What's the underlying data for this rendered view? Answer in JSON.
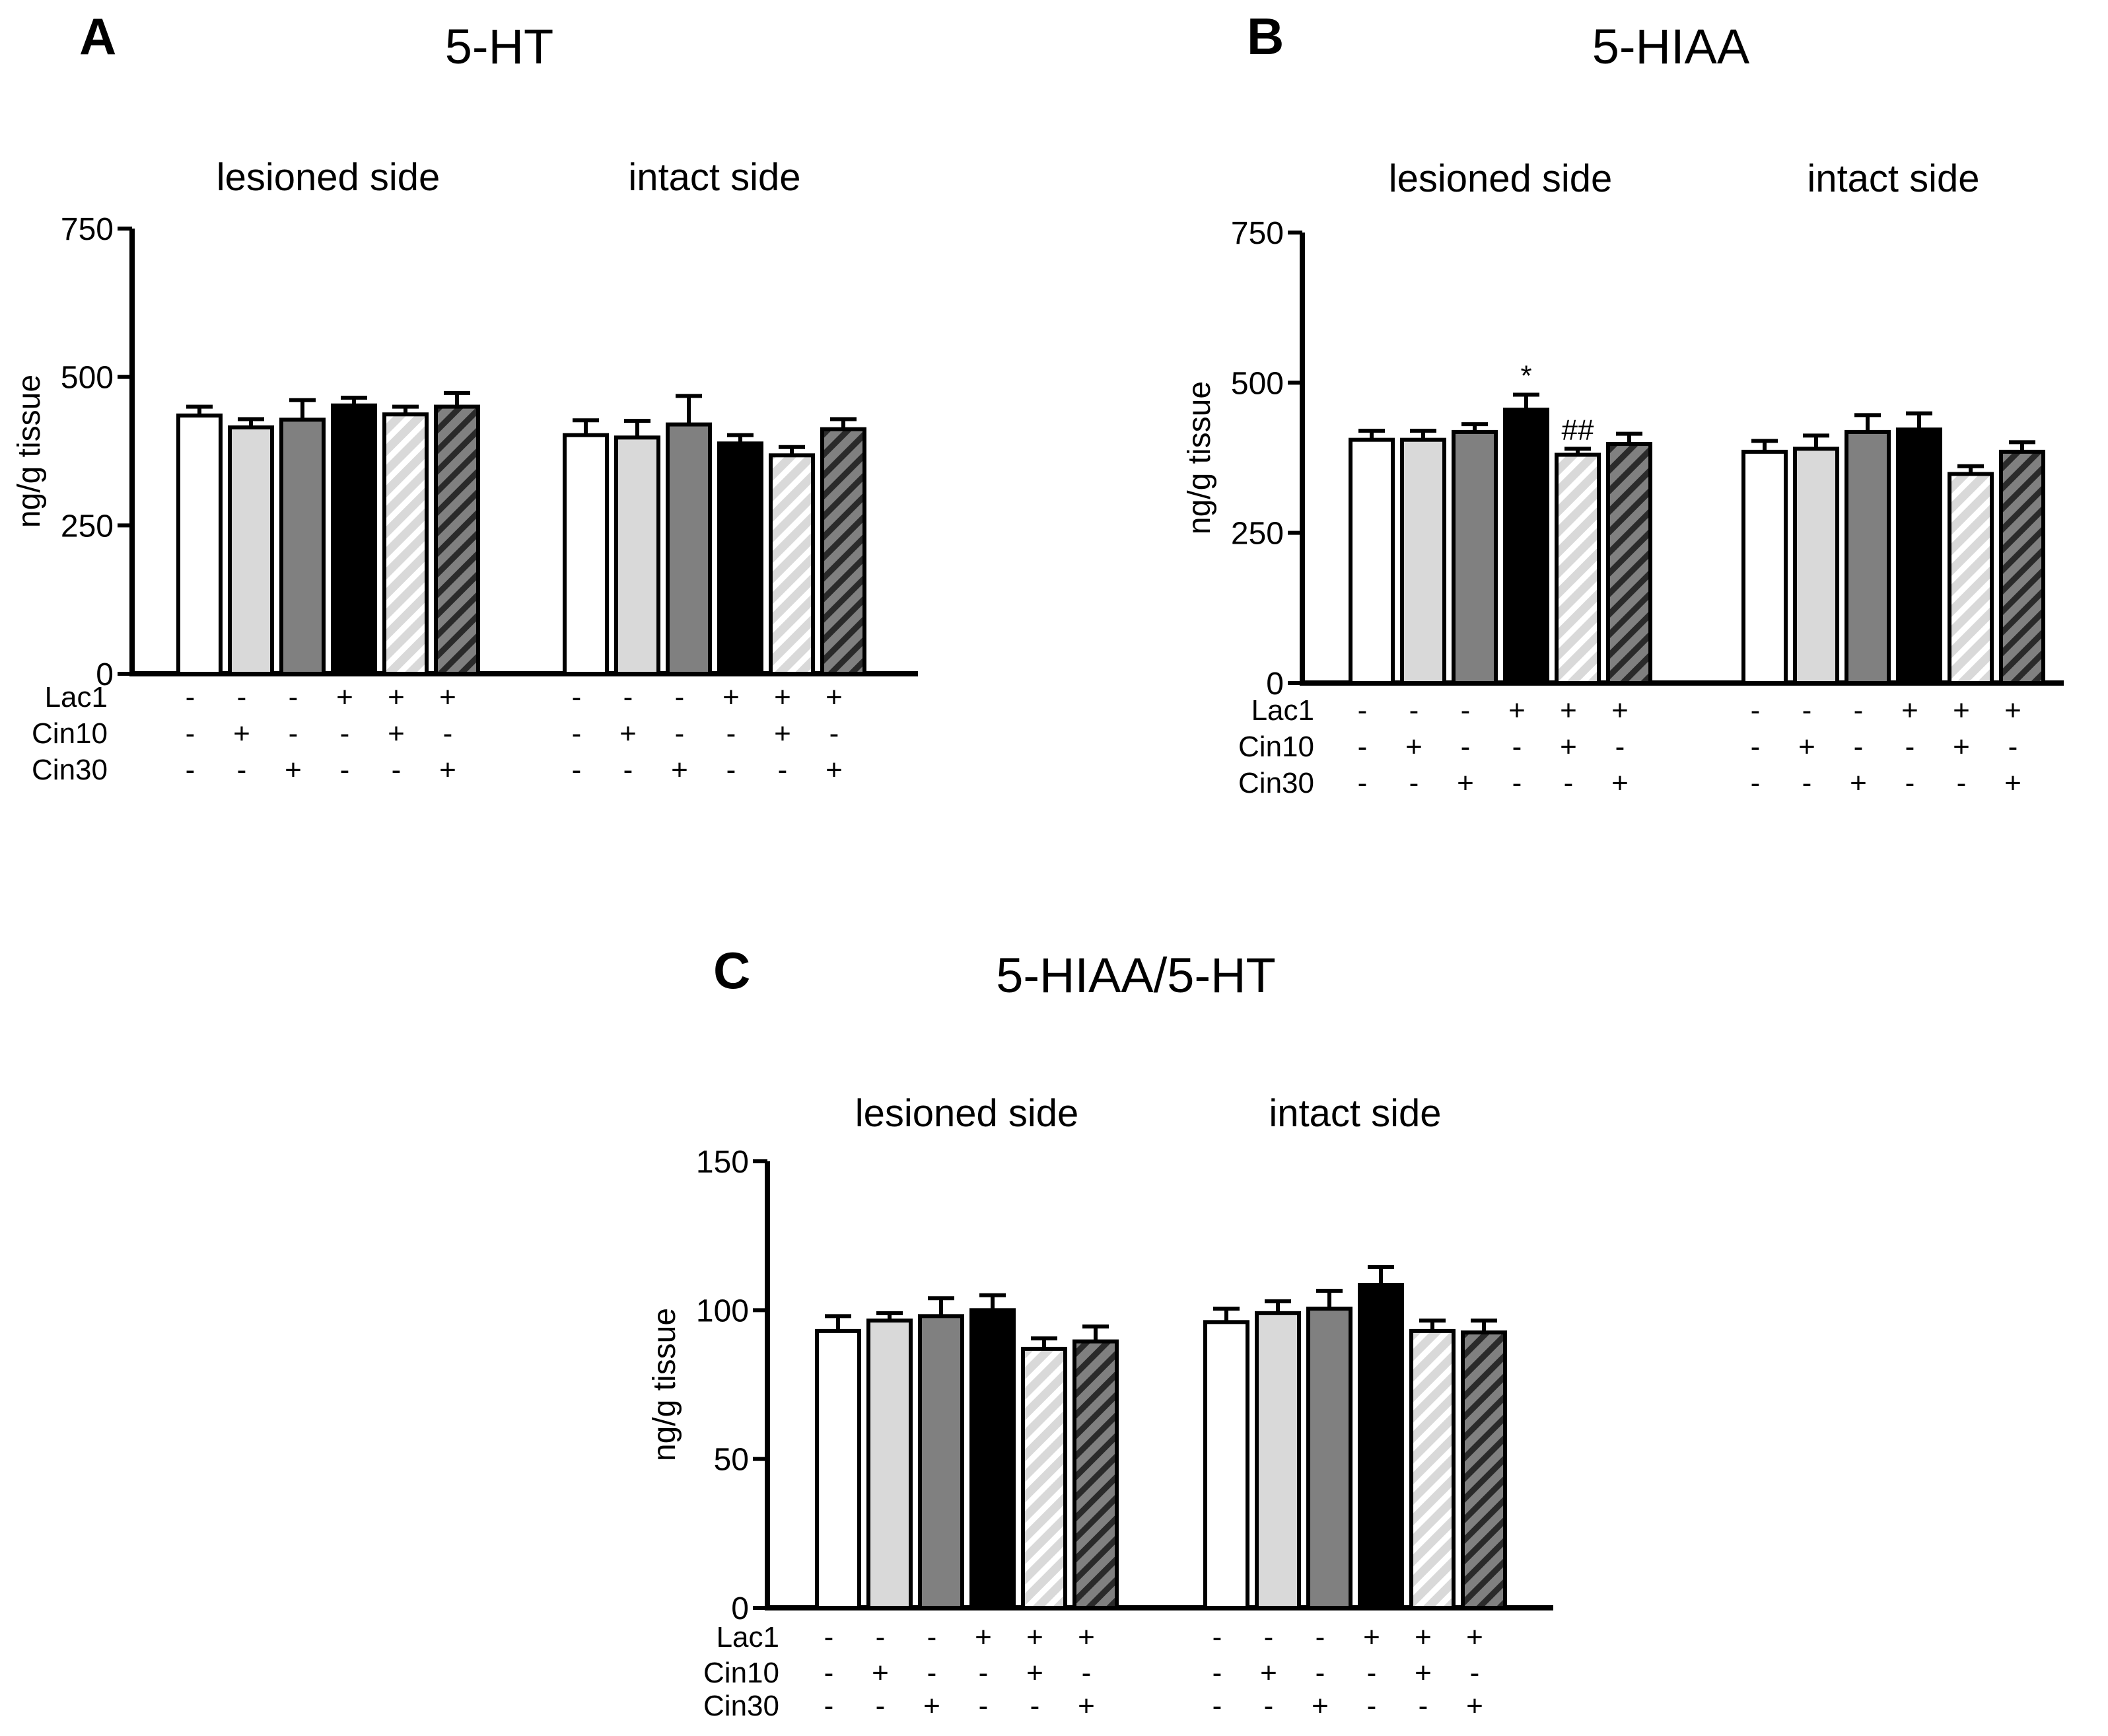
{
  "patterns": {
    "white": "#ffffff",
    "light_gray": "#d9d9d9",
    "dark_gray": "#808080",
    "black": "#000000",
    "hatch_light": "#d9d9d9",
    "hatch_dark": "#808080"
  },
  "chart_data": [
    {
      "id": "A",
      "type": "bar",
      "letter": "A",
      "title": "5-HT",
      "ylabel": "ng/g tissue",
      "ylim": [
        0,
        750
      ],
      "yticks": [
        "0",
        "250",
        "500",
        "750"
      ],
      "groups": [
        {
          "label": "lesioned   side",
          "values": [
            435,
            415,
            428,
            452,
            437,
            450
          ],
          "errors": [
            15,
            14,
            33,
            13,
            13,
            23
          ],
          "sig": [
            "",
            "",
            "",
            "",
            "",
            ""
          ]
        },
        {
          "label": "intact side",
          "values": [
            402,
            398,
            420,
            388,
            368,
            412
          ],
          "errors": [
            25,
            28,
            48,
            14,
            14,
            17
          ],
          "sig": [
            "",
            "",
            "",
            "",
            "",
            ""
          ]
        }
      ],
      "bar_fills": [
        "white",
        "light_gray",
        "dark_gray",
        "black",
        "hatch_light",
        "hatch_dark"
      ],
      "treatment_rows": [
        {
          "label": "Lac1",
          "symbols": [
            "-",
            "-",
            "-",
            "+",
            "+",
            "+"
          ]
        },
        {
          "label": "Cin10",
          "symbols": [
            "-",
            "+",
            "-",
            "-",
            "+",
            "-"
          ]
        },
        {
          "label": "Cin30",
          "symbols": [
            "-",
            "-",
            "+",
            "-",
            "-",
            "+"
          ]
        }
      ]
    },
    {
      "id": "B",
      "type": "bar",
      "letter": "B",
      "title": "5-HIAA",
      "ylabel": "ng/g tissue",
      "ylim": [
        0,
        750
      ],
      "yticks": [
        "0",
        "250",
        "500",
        "750"
      ],
      "groups": [
        {
          "label": "lesioned   side",
          "values": [
            405,
            405,
            418,
            455,
            380,
            398
          ],
          "errors": [
            15,
            15,
            13,
            25,
            10,
            17
          ],
          "sig": [
            "",
            "",
            "",
            "*",
            "##",
            ""
          ]
        },
        {
          "label": "intact side",
          "values": [
            385,
            390,
            418,
            422,
            348,
            385
          ],
          "errors": [
            18,
            22,
            28,
            27,
            13,
            16
          ],
          "sig": [
            "",
            "",
            "",
            "",
            "",
            ""
          ]
        }
      ],
      "bar_fills": [
        "white",
        "light_gray",
        "dark_gray",
        "black",
        "hatch_light",
        "hatch_dark"
      ],
      "treatment_rows": [
        {
          "label": "Lac1",
          "symbols": [
            "-",
            "-",
            "-",
            "+",
            "+",
            "+"
          ]
        },
        {
          "label": "Cin10",
          "symbols": [
            "-",
            "+",
            "-",
            "-",
            "+",
            "-"
          ]
        },
        {
          "label": "Cin30",
          "symbols": [
            "-",
            "-",
            "+",
            "-",
            "-",
            "+"
          ]
        }
      ]
    },
    {
      "id": "C",
      "type": "bar",
      "letter": "C",
      "title": "5-HIAA/5-HT",
      "ylabel": "ng/g tissue",
      "ylim": [
        0,
        150
      ],
      "yticks": [
        "0",
        "50",
        "100",
        "150"
      ],
      "groups": [
        {
          "label": "lesioned   side",
          "values": [
            93,
            96.5,
            98,
            100,
            87,
            89.5
          ],
          "errors": [
            5,
            2.5,
            6,
            5,
            3.5,
            5
          ],
          "sig": [
            "",
            "",
            "",
            "",
            "",
            ""
          ]
        },
        {
          "label": "intact side",
          "values": [
            96,
            99,
            100.5,
            108.5,
            93,
            92.5
          ],
          "errors": [
            4.5,
            4,
            6,
            6,
            3.5,
            4
          ],
          "sig": [
            "",
            "",
            "",
            "",
            "",
            ""
          ]
        }
      ],
      "bar_fills": [
        "white",
        "light_gray",
        "dark_gray",
        "black",
        "hatch_light",
        "hatch_dark"
      ],
      "treatment_rows": [
        {
          "label": "Lac1",
          "symbols": [
            "-",
            "-",
            "-",
            "+",
            "+",
            "+"
          ]
        },
        {
          "label": "Cin10",
          "symbols": [
            "-",
            "+",
            "-",
            "-",
            "+",
            "-"
          ]
        },
        {
          "label": "Cin30",
          "symbols": [
            "-",
            "-",
            "+",
            "-",
            "-",
            "+"
          ]
        }
      ]
    }
  ]
}
